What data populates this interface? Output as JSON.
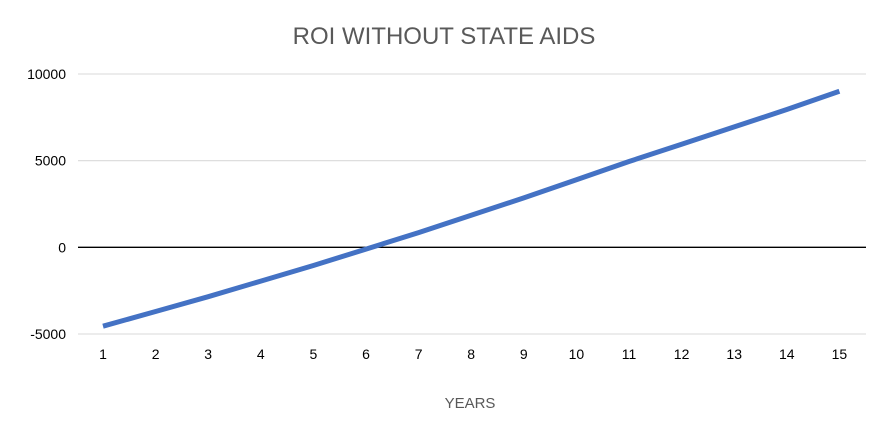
{
  "chart_data": {
    "type": "line",
    "title": "ROI WITHOUT STATE AIDS",
    "xlabel": "YEARS",
    "ylabel": "",
    "x": [
      1,
      2,
      3,
      4,
      5,
      6,
      7,
      8,
      9,
      10,
      11,
      12,
      13,
      14,
      15
    ],
    "series": [
      {
        "name": "ROI",
        "color": "#4472C4",
        "values": [
          -4550,
          -3700,
          -2850,
          -1950,
          -1050,
          -100,
          850,
          1850,
          2850,
          3900,
          4950,
          5950,
          6950,
          7950,
          9000
        ]
      }
    ],
    "ylim": [
      -5000,
      10000
    ],
    "yticks": [
      10000,
      5000,
      0,
      -5000
    ],
    "grid": true,
    "legend": "none",
    "colors": {
      "gridline": "#d9d9d9",
      "zero_line": "#000000",
      "title": "#595959",
      "axis_text": "#000000",
      "axis_label": "#595959"
    }
  }
}
